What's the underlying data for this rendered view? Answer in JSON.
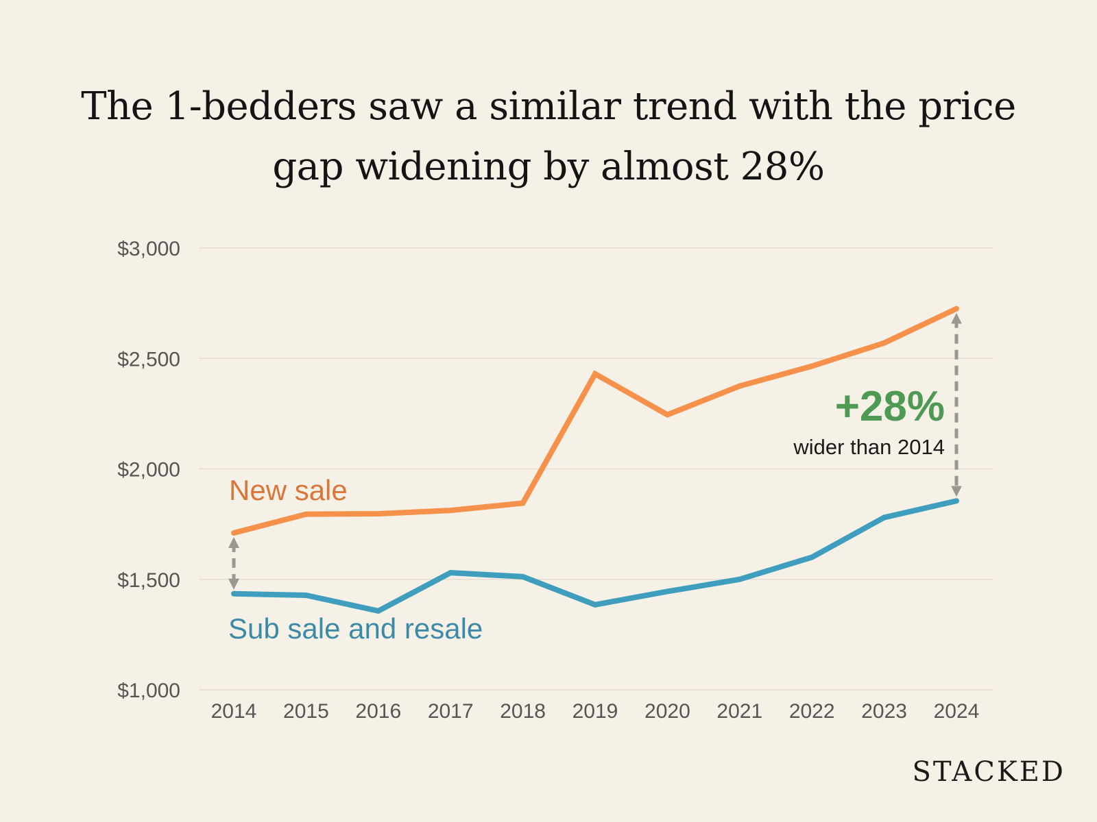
{
  "title_lines": [
    "The 1-bedders saw a similar trend with the price",
    "gap widening by almost 28%"
  ],
  "brand": "STACKED",
  "colors": {
    "background": "#f5f1e6",
    "new_sale": "#f5914a",
    "resale": "#3f9ebd",
    "new_sale_label": "#d9773b",
    "resale_label": "#3b8aa8",
    "highlight": "#4e9a55",
    "arrow": "#9a9893",
    "grid": "#e3ded1",
    "tick": "#555555"
  },
  "chart_data": {
    "type": "line",
    "x": [
      "2014",
      "2015",
      "2016",
      "2017",
      "2018",
      "2019",
      "2020",
      "2021",
      "2022",
      "2023",
      "2024"
    ],
    "ylim": [
      1000,
      3000
    ],
    "yticks": [
      "$1,000",
      "$1,500",
      "$2,000",
      "$2,500",
      "$3,000"
    ],
    "ytick_values": [
      1000,
      1500,
      2000,
      2500,
      3000
    ],
    "grid": true,
    "series": [
      {
        "name": "New sale",
        "values": [
          1710,
          1795,
          1797,
          1812,
          1845,
          2430,
          2245,
          2375,
          2465,
          2570,
          2725
        ]
      },
      {
        "name": "Sub sale and resale",
        "values": [
          1435,
          1428,
          1357,
          1530,
          1512,
          1385,
          1445,
          1500,
          1600,
          1780,
          1855
        ]
      }
    ],
    "annotations": {
      "gap_start_year": "2014",
      "gap_end_year": "2024",
      "highlight_text": "+28%",
      "highlight_subtext": "wider than 2014"
    }
  }
}
